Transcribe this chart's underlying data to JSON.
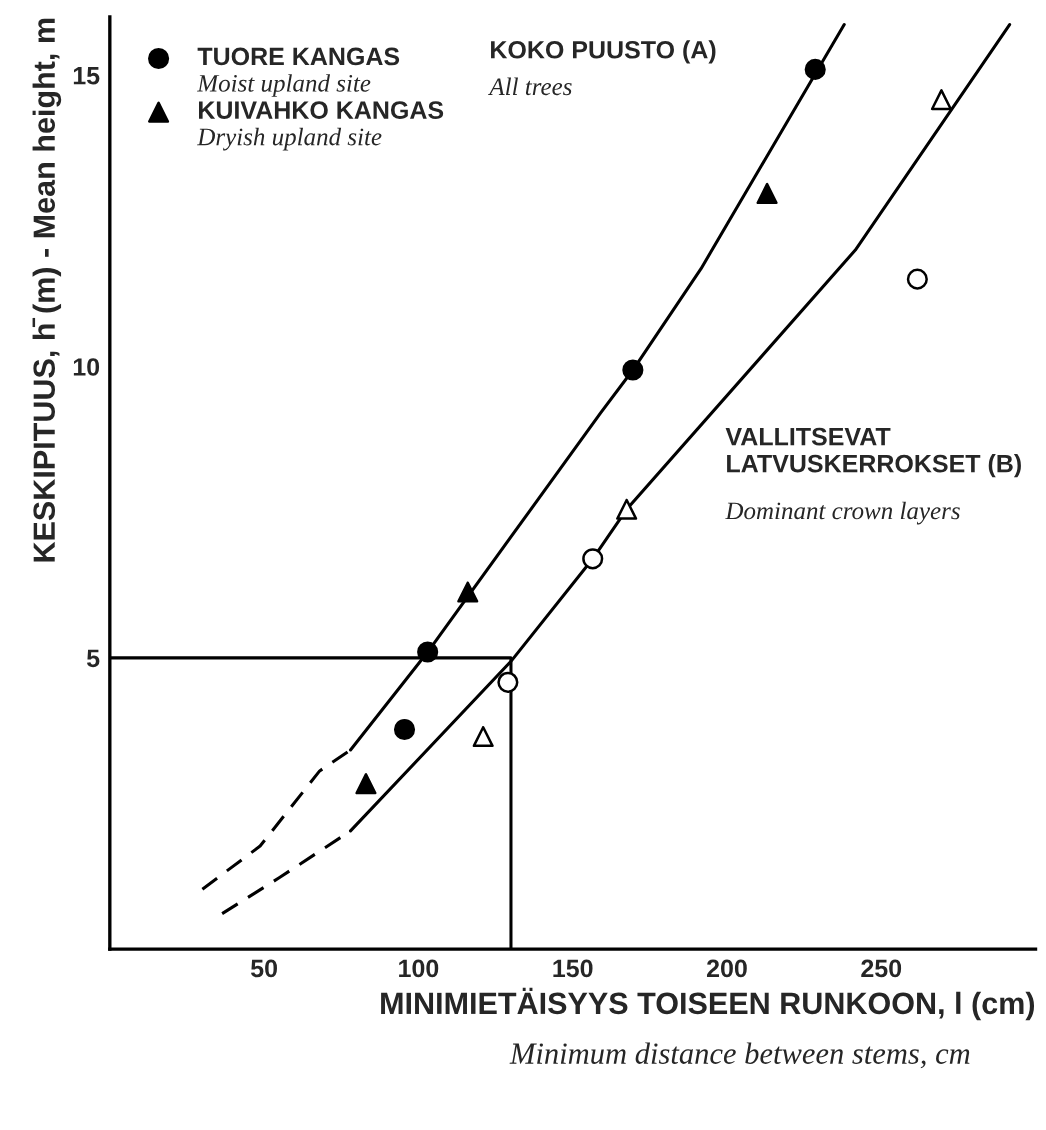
{
  "chart_data": {
    "type": "scatter",
    "xlabel": "MINIMIETÄISYYS TOISEEN RUNKOON, l (cm)",
    "ylabel": "KESKIPITUUS, h̄ (m) - Mean height, m",
    "xlim": [
      0,
      300
    ],
    "ylim": [
      0,
      16
    ],
    "xticks": [
      50,
      100,
      150,
      200,
      250
    ],
    "yticks": [
      {
        "value": 5,
        "label": "5"
      },
      {
        "value": 10,
        "label": "10"
      },
      {
        "value": 15,
        "label": "15"
      }
    ],
    "grid": false,
    "legend": "top left",
    "annotations": [
      "KOKO PUUSTO (A)",
      "All trees",
      "VALLITSEVAT\nLATVUSKERROKSET (B)",
      "Dominant crown layers",
      "Moist upland site",
      "Dryish upland site",
      "Minimum distance between stems, cm"
    ],
    "series": [
      {
        "name": "TUORE KANGAS",
        "type": "scatter",
        "marker": "circle",
        "color": "#000000",
        "x": [
          95.5,
          103,
          169.5,
          228.6
        ],
        "values": [
          3.77,
          5.1,
          9.94,
          15.1
        ]
      },
      {
        "type": "scatter",
        "marker": "circle",
        "color": "#ffffff",
        "x": [
          129,
          156.5,
          261.7
        ],
        "values": [
          4.58,
          6.7,
          11.5
        ]
      },
      {
        "name": "KUIVAHKO KANGAS",
        "type": "scatter",
        "marker": "triangle",
        "color": "#000000",
        "x": [
          83,
          116,
          213
        ],
        "values": [
          2.84,
          6.13,
          12.97
        ]
      },
      {
        "type": "scatter",
        "marker": "triangle",
        "color": "#ffffff",
        "x": [
          121,
          167.5,
          269.5
        ],
        "values": [
          3.65,
          7.55,
          14.58
        ]
      },
      {
        "type": "line",
        "line_style": "dashed",
        "color": "#000000",
        "x": [
          30,
          48.7,
          68,
          78
        ],
        "values": [
          1.03,
          1.77,
          3.06,
          3.42
        ]
      },
      {
        "type": "line",
        "line_style": "solid",
        "color": "#000000",
        "x": [
          78,
          103,
          159,
          169.5,
          191.6,
          238
        ],
        "values": [
          3.42,
          5.1,
          9.2,
          9.94,
          11.68,
          15.87
        ]
      },
      {
        "type": "line",
        "line_style": "dashed",
        "color": "#000000",
        "x": [
          36.4,
          55,
          78
        ],
        "values": [
          0.61,
          1.23,
          2.03
        ]
      },
      {
        "type": "line",
        "line_style": "solid",
        "color": "#000000",
        "x": [
          78,
          130,
          156.5,
          167.5,
          241.6,
          291.6
        ],
        "values": [
          2.03,
          4.94,
          6.7,
          7.55,
          12.0,
          15.87
        ]
      },
      {
        "type": "line",
        "line_style": "solid",
        "color": "#000000",
        "x": [
          0,
          130,
          130
        ],
        "values": [
          5,
          5,
          0
        ]
      }
    ]
  }
}
